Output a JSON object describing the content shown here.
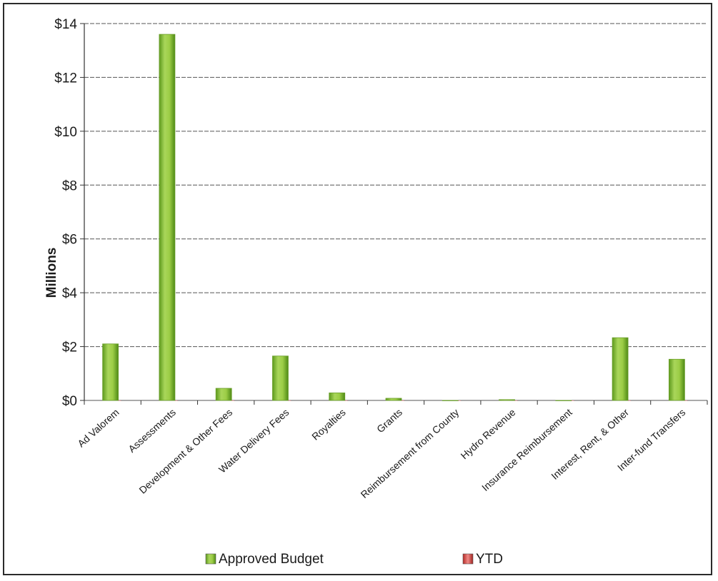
{
  "chart_data": {
    "type": "bar",
    "categories": [
      "Ad Valorem",
      "Assessments",
      "Development & Other Fees",
      "Water Delivery Fees",
      "Royalties",
      "Grants",
      "Reimbursement from County",
      "Hydro Revenue",
      "Insurance Reimbursement",
      "Interest, Rent, & Other",
      "Inter-fund Transfers"
    ],
    "series": [
      {
        "name": "Approved Budget",
        "color": "#8fc23a",
        "values": [
          2.1,
          13.6,
          0.45,
          1.65,
          0.28,
          0.08,
          0.0,
          0.03,
          0.0,
          2.33,
          1.53
        ]
      },
      {
        "name": "YTD",
        "color": "#d9534f",
        "values": [
          0,
          0,
          0,
          0,
          0,
          0,
          0,
          0,
          0,
          0,
          0
        ]
      }
    ],
    "ylabel": "Millions",
    "ylim": [
      0,
      14
    ],
    "yticks": [
      0,
      2,
      4,
      6,
      8,
      10,
      12,
      14
    ],
    "ytick_labels": [
      "$0",
      "$2",
      "$4",
      "$6",
      "$8",
      "$10",
      "$12",
      "$14"
    ],
    "grid": true,
    "legend_position": "bottom"
  }
}
